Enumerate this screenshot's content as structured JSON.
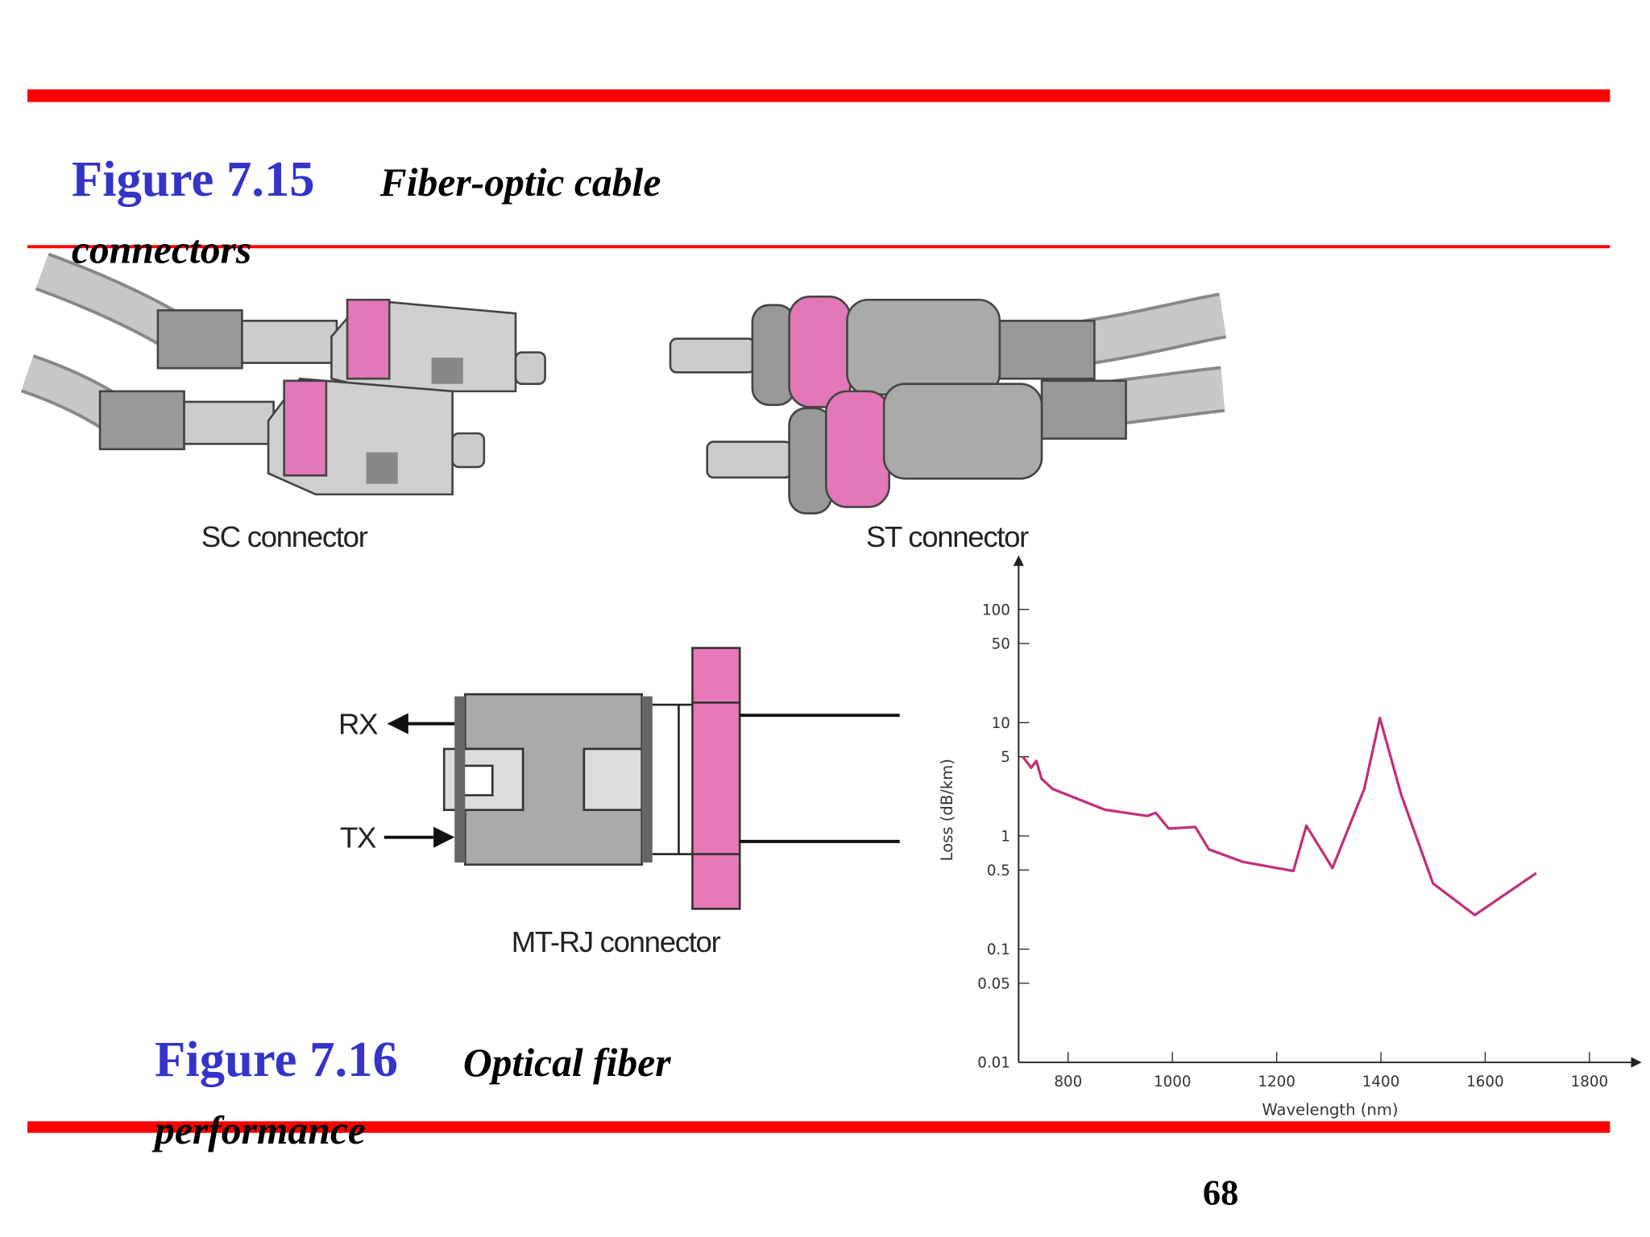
{
  "figure_7_15": {
    "number": "Figure 7.15",
    "caption": "Fiber-optic cable connectors"
  },
  "connectors": {
    "sc": "SC connector",
    "st": "ST connector",
    "mtrj": "MT-RJ connector",
    "rx": "RX",
    "tx": "TX"
  },
  "figure_7_16": {
    "number": "Figure 7.16",
    "caption": "Optical fiber performance"
  },
  "chart_data": {
    "type": "line",
    "x_label": "Wavelength (nm)",
    "y_label": "Loss (dB/km)",
    "log_y": true,
    "color": "#c2307a",
    "x": [
      713,
      729,
      739,
      749,
      770,
      871,
      952,
      968,
      993,
      1044,
      1070,
      1135,
      1232,
      1257,
      1307,
      1368,
      1398,
      1439,
      1500,
      1580,
      1698
    ],
    "values": [
      5.0,
      4.0,
      4.6,
      3.2,
      2.6,
      1.7,
      1.5,
      1.6,
      1.16,
      1.2,
      0.76,
      0.59,
      0.49,
      1.23,
      0.52,
      2.6,
      11,
      2.3,
      0.38,
      0.2,
      0.47
    ],
    "xlim": [
      705,
      1900
    ],
    "xticks": [
      800,
      1000,
      1200,
      1400,
      1600,
      1800
    ],
    "ylim": [
      0.01,
      300
    ],
    "yticks": [
      0.01,
      0.05,
      0.1,
      0.5,
      1,
      5,
      10,
      50,
      100
    ]
  },
  "page_number": "68"
}
